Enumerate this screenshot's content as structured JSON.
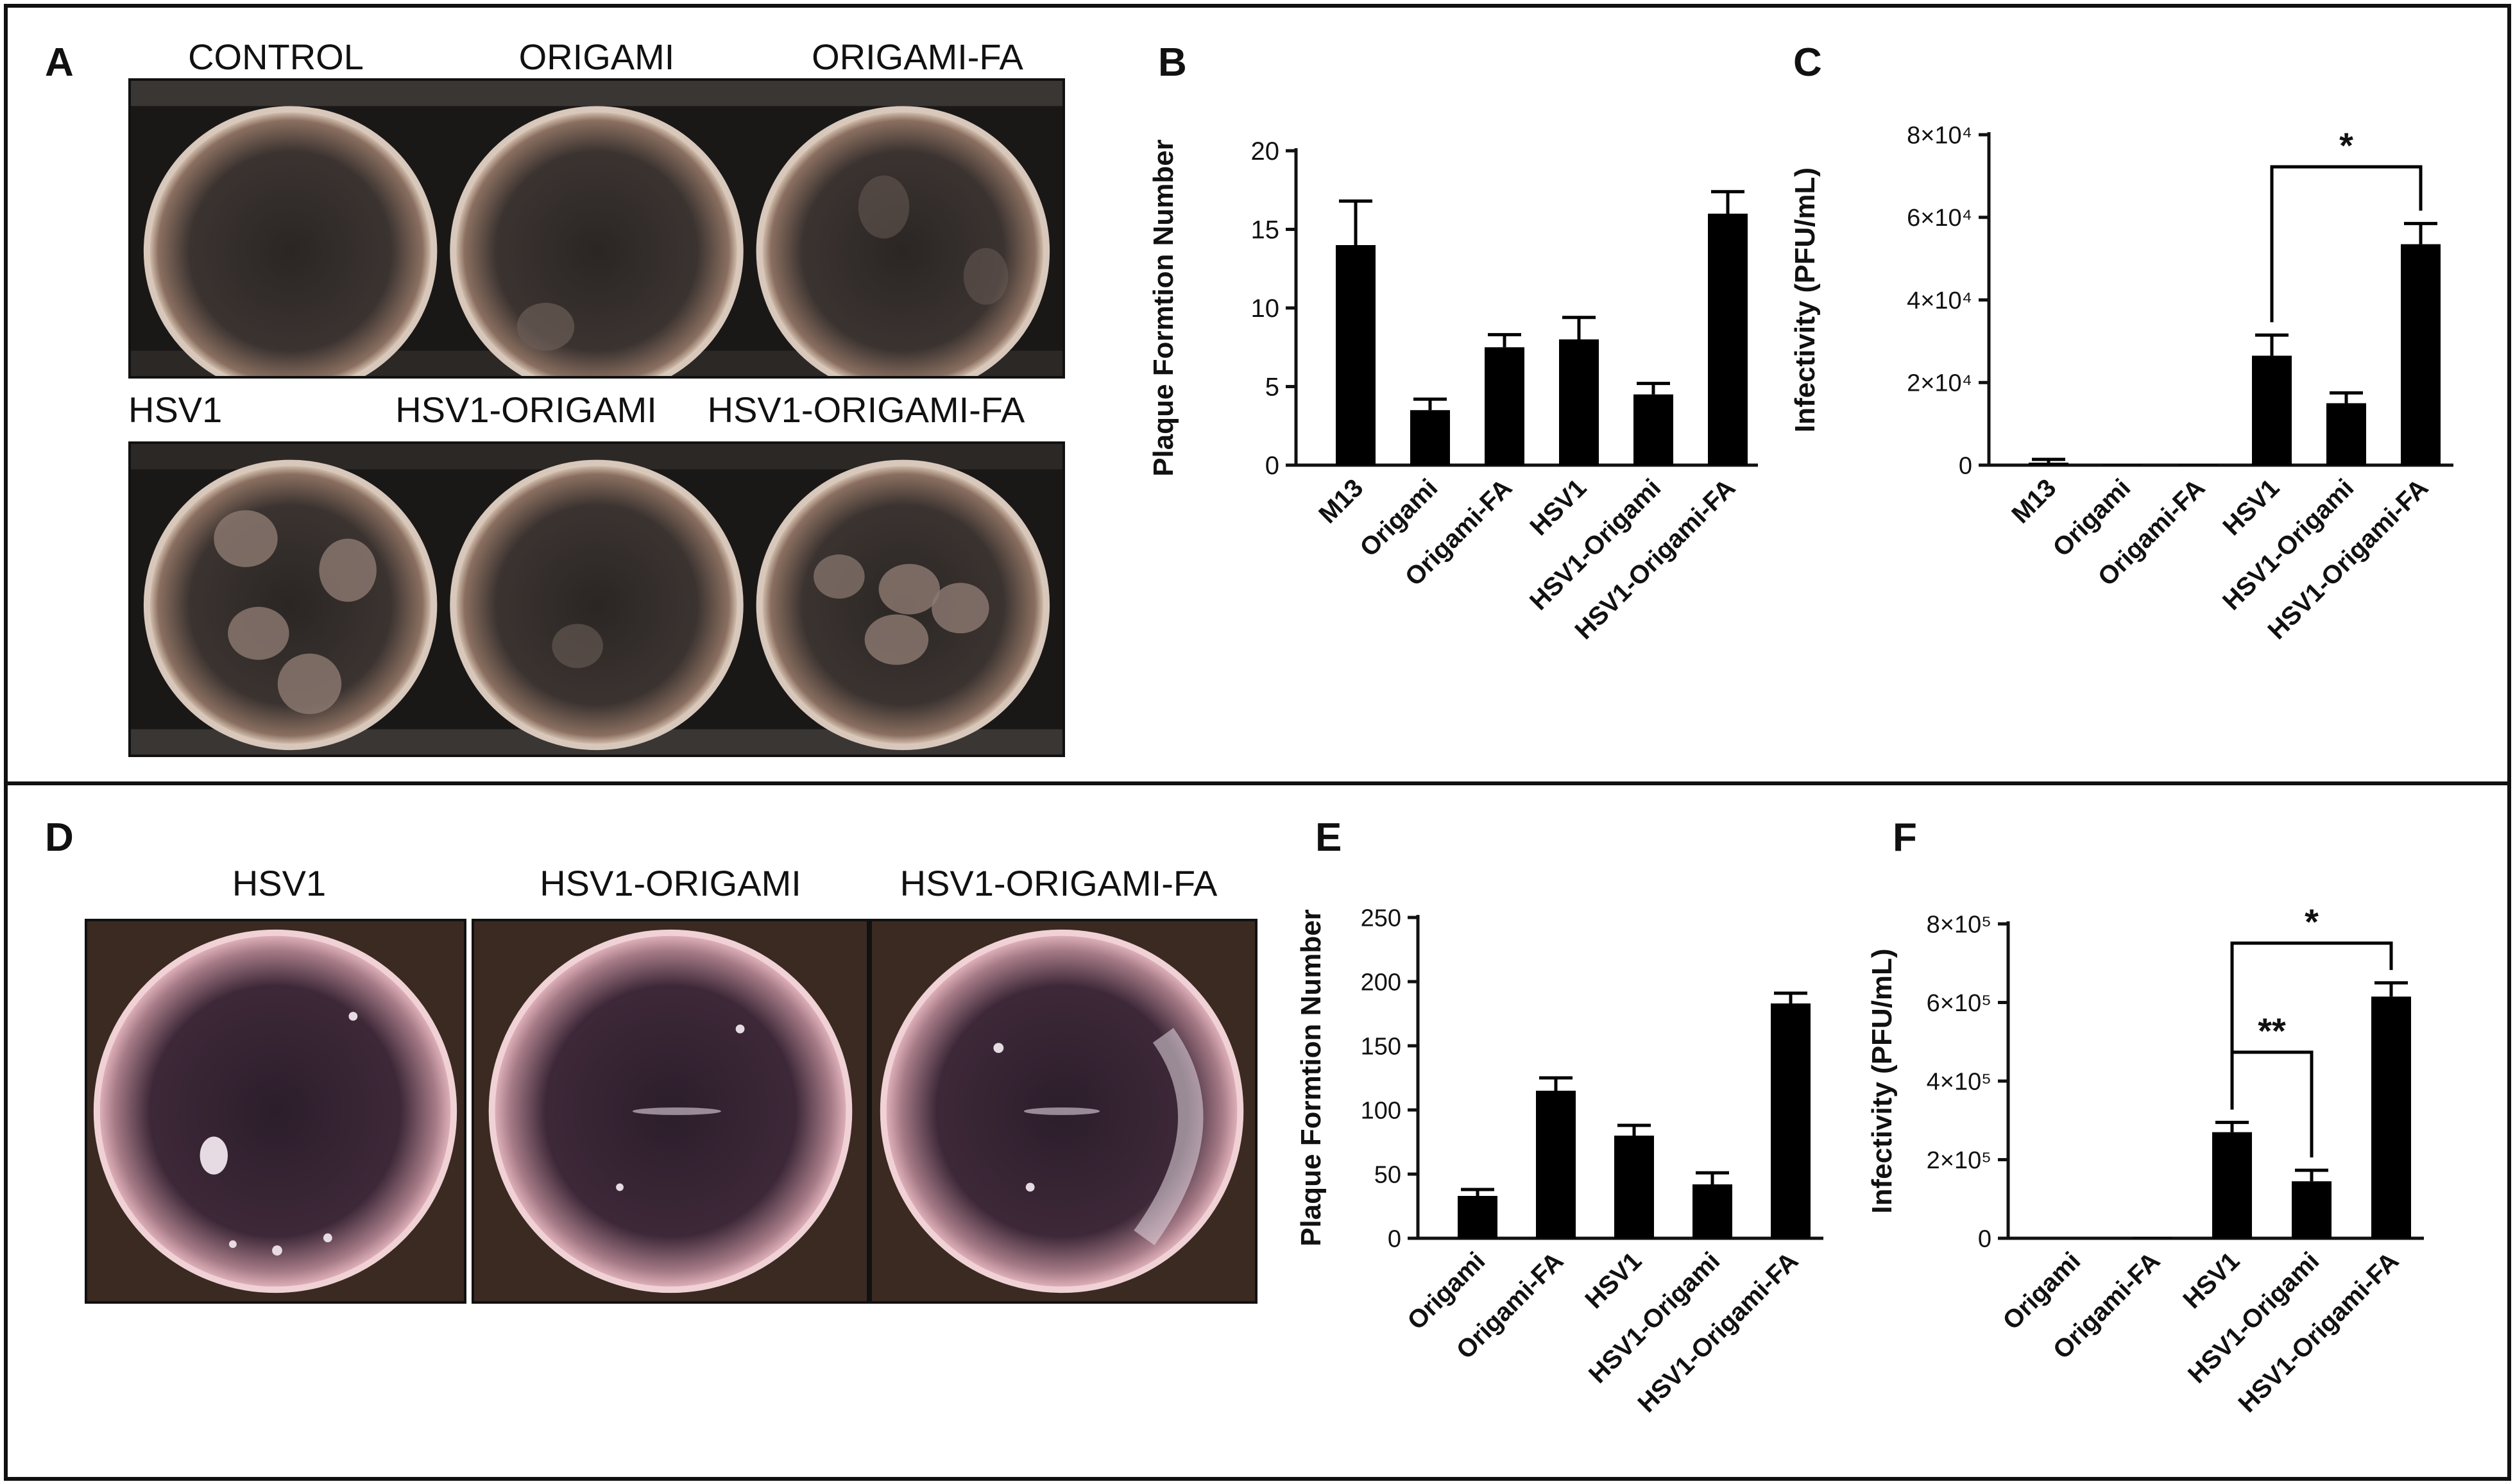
{
  "panels": {
    "A": {
      "label": "A",
      "top_wells": [
        "CONTROL",
        "ORIGAMI",
        "ORIGAMI-FA"
      ],
      "bottom_wells": [
        "HSV1",
        "HSV1-ORIGAMI",
        "HSV1-ORIGAMI-FA"
      ]
    },
    "B": {
      "label": "B"
    },
    "C": {
      "label": "C"
    },
    "D": {
      "label": "D",
      "wells": [
        "HSV1",
        "HSV1-ORIGAMI",
        "HSV1-ORIGAMI-FA"
      ]
    },
    "E": {
      "label": "E"
    },
    "F": {
      "label": "F"
    }
  },
  "chart_data": [
    {
      "id": "B",
      "type": "bar",
      "categories": [
        "M13",
        "Origami",
        "Origami-FA",
        "HSV1",
        "HSV1-Origami",
        "HSV1-Origami-FA"
      ],
      "values": [
        14,
        3.5,
        7.5,
        8,
        4.5,
        16
      ],
      "errors": [
        2.8,
        0.7,
        0.8,
        1.4,
        0.7,
        1.4
      ],
      "ylabel": "Plaque Formtion Number",
      "ylim": [
        0,
        20
      ],
      "yticks": [
        0,
        5,
        10,
        15,
        20
      ],
      "ytick_labels": [
        "0",
        "5",
        "10",
        "15",
        "20"
      ],
      "significance": []
    },
    {
      "id": "C",
      "type": "bar",
      "categories": [
        "M13",
        "Origami",
        "Origami-FA",
        "HSV1",
        "HSV1-Origami",
        "HSV1-Origami-FA"
      ],
      "values": [
        600,
        150,
        150,
        26500,
        15000,
        53500
      ],
      "errors": [
        800,
        0,
        0,
        5000,
        2500,
        5000
      ],
      "ylabel": "Infectivity (PFU/mL)",
      "ylim": [
        0,
        80000
      ],
      "yticks": [
        0,
        20000,
        40000,
        60000,
        80000
      ],
      "ytick_labels": [
        "0",
        "2×10⁴",
        "4×10⁴",
        "6×10⁴",
        "8×10⁴"
      ],
      "significance": [
        {
          "from": 3,
          "to": 5,
          "label": "*"
        }
      ]
    },
    {
      "id": "E",
      "type": "bar",
      "categories": [
        "Origami",
        "Origami-FA",
        "HSV1",
        "HSV1-Origami",
        "HSV1-Origami-FA"
      ],
      "values": [
        33,
        115,
        80,
        42,
        183
      ],
      "errors": [
        5,
        10,
        8,
        9,
        8
      ],
      "ylabel": "Plaque Formtion Number",
      "ylim": [
        0,
        250
      ],
      "yticks": [
        0,
        50,
        100,
        150,
        200,
        250
      ],
      "ytick_labels": [
        "0",
        "50",
        "100",
        "150",
        "200",
        "250"
      ],
      "significance": []
    },
    {
      "id": "F",
      "type": "bar",
      "categories": [
        "Origami",
        "Origami-FA",
        "HSV1",
        "HSV1-Origami",
        "HSV1-Origami-FA"
      ],
      "values": [
        0,
        3000,
        270000,
        145000,
        615000
      ],
      "errors": [
        0,
        0,
        25000,
        28000,
        35000
      ],
      "ylabel": "Infectivity (PFU/mL)",
      "ylim": [
        0,
        800000
      ],
      "yticks": [
        0,
        200000,
        400000,
        600000,
        800000
      ],
      "ytick_labels": [
        "0",
        "2×10⁵",
        "4×10⁵",
        "6×10⁵",
        "8×10⁵"
      ],
      "significance": [
        {
          "from": 2,
          "to": 3,
          "label": "**"
        },
        {
          "from": 2,
          "to": 4,
          "label": "*"
        }
      ]
    }
  ]
}
